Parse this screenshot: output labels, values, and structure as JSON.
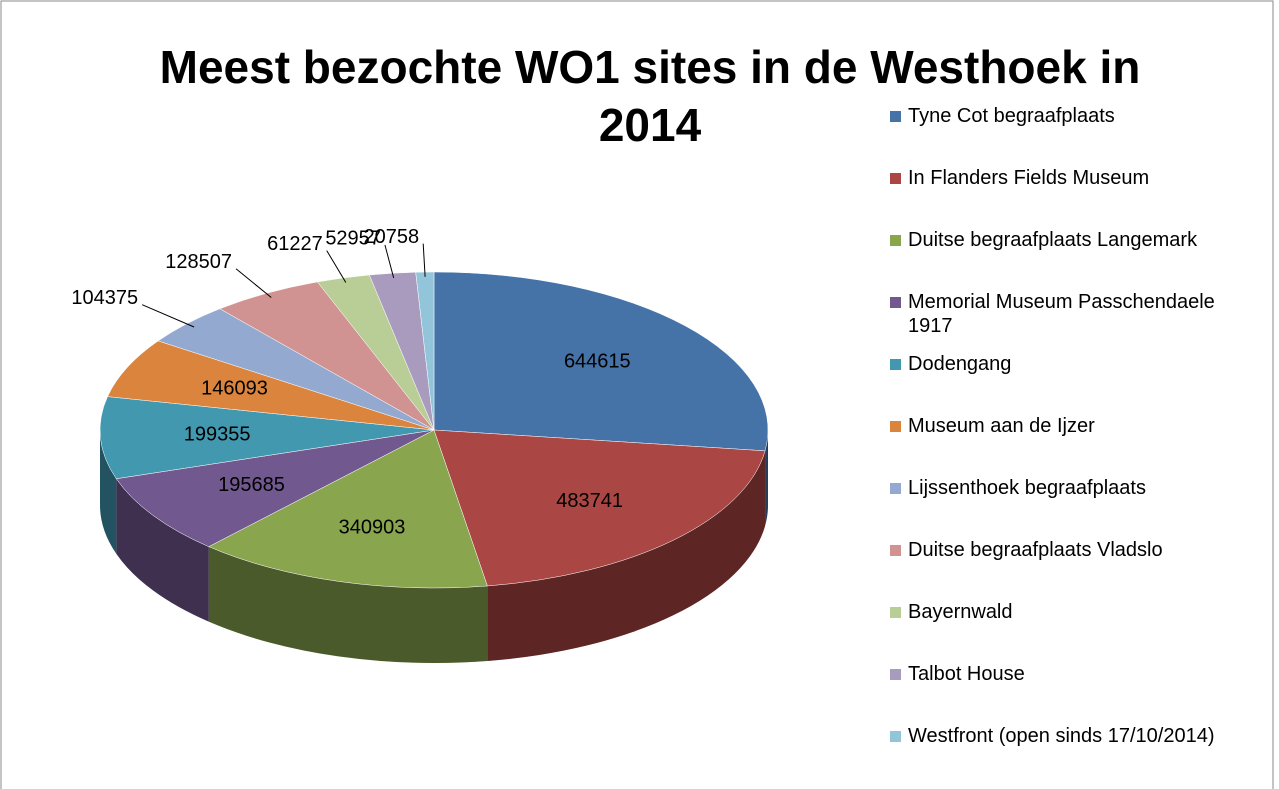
{
  "chart_data": {
    "type": "pie",
    "title": "Meest bezochte WO1 sites in de Westhoek in 2014",
    "categories": [
      "Tyne Cot begraafplaats",
      "In Flanders Fields Museum",
      "Duitse begraafplaats Langemark",
      "Memorial Museum Passchendaele 1917",
      "Dodengang",
      "Museum aan de Ijzer",
      "Lijssenthoek begraafplaats",
      "Duitse begraafplaats Vladslo",
      "Bayernwald",
      "Talbot House",
      "Westfront (open sinds 17/10/2014)"
    ],
    "values": [
      644615,
      483741,
      340903,
      195685,
      199355,
      146093,
      104375,
      128507,
      61227,
      52957,
      20758
    ],
    "colors": [
      "#4572A7",
      "#AA4643",
      "#89A54E",
      "#71588F",
      "#4198AF",
      "#DB843D",
      "#93A9CF",
      "#D19392",
      "#B9CD96",
      "#A99BBD",
      "#92C5D9"
    ],
    "legend": "right"
  }
}
